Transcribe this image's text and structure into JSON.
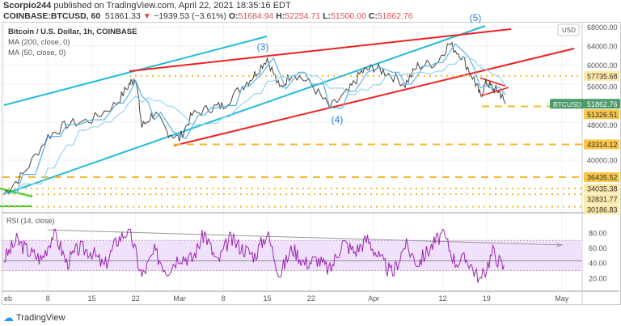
{
  "header": {
    "author": "Scorpio244",
    "published": "published on TradingView.com, April 22, 2021 18:35:16 EDT",
    "symbol": "COINBASE:BTCUSD, 60",
    "last": "51861.33",
    "change": "−1939.53 (−3.61%)",
    "o_label": "O:",
    "o": "51684.94",
    "h_label": "H:",
    "h": "52254.71",
    "l_label": "L:",
    "l": "51500.00",
    "c_label": "C:",
    "c": "51862.76"
  },
  "legend": {
    "title": "Bitcoin / U.S. Dollar, 1h, COINBASE",
    "ma200": "MA (200, close, 0)",
    "ma50": "MA (50, close, 0)",
    "rsi": "RSI (14, close)"
  },
  "footer": {
    "brand": "TradingView"
  },
  "colors": {
    "price": "#444444",
    "ma": "#5ab0e8",
    "channel_cyan": "#22bcd8",
    "trend_red": "#ee2222",
    "level": "#f5b82e",
    "rsi": "#9c27b0",
    "rsi_band": "#f0e2fc",
    "btc_tag": "#4a9a6a"
  },
  "chart_data": {
    "type": "line",
    "title": "Bitcoin / U.S. Dollar, 1h, COINBASE",
    "currency": "USD",
    "x_ticks": [
      "eb",
      "8",
      "15",
      "22",
      "Mar",
      "8",
      "15",
      "22",
      "Apr",
      "12",
      "19",
      "May"
    ],
    "x_tick_days": [
      0,
      7,
      14,
      21,
      28,
      35,
      42,
      49,
      59,
      70,
      77,
      89
    ],
    "y_ticks": [
      "68000.00",
      "64000.00",
      "60000.00",
      "56000.00",
      "48000.00",
      "40000.00"
    ],
    "y_tick_values": [
      68000,
      64000,
      60000,
      56000,
      48000,
      40000
    ],
    "ylim": [
      29000,
      69500
    ],
    "price_series": {
      "day": [
        0,
        3,
        7,
        10,
        14,
        18,
        20,
        21,
        22,
        24,
        26,
        28,
        30,
        33,
        35,
        38,
        40,
        42,
        44,
        46,
        49,
        52,
        55,
        57,
        59,
        61,
        64,
        66,
        69,
        71,
        73,
        75,
        76,
        77,
        78,
        79,
        80
      ],
      "close": [
        33000,
        37000,
        45000,
        47500,
        48500,
        52000,
        56000,
        57500,
        47000,
        50000,
        46000,
        44500,
        49500,
        51000,
        51500,
        55500,
        58000,
        61500,
        55000,
        58500,
        56000,
        51000,
        54500,
        58500,
        59500,
        58500,
        56000,
        59800,
        60500,
        64500,
        62000,
        57000,
        53500,
        56500,
        55000,
        54500,
        51862
      ]
    },
    "annotations": [
      "(3)",
      "(4)",
      "(5)"
    ],
    "levels": [
      {
        "label": "57735.68",
        "value": 57735.68,
        "style": "dotted"
      },
      {
        "label": "51326.51",
        "value": 51326.51,
        "style": "dashed"
      },
      {
        "label": "43314.12",
        "value": 43314.12,
        "style": "dashed"
      },
      {
        "label": "36435.52",
        "value": 36435.52,
        "style": "dashed"
      },
      {
        "label": "34035.38",
        "value": 34035.38,
        "style": "dotted"
      },
      {
        "label": "32831.77",
        "value": 32831.77,
        "style": "dotted"
      },
      {
        "label": "30186.83",
        "value": 30186.83,
        "style": "dotted"
      }
    ],
    "last_price": {
      "label": "BTCUSD",
      "value": "51862.76"
    },
    "rsi": {
      "title": "RSI (14, close)",
      "y_ticks": [
        "80.00",
        "60.00",
        "40.00",
        "20.00"
      ],
      "y_tick_values": [
        80,
        60,
        40,
        20
      ],
      "band": [
        30,
        70
      ],
      "ylim": [
        5,
        95
      ],
      "day": [
        0,
        2,
        4,
        6,
        8,
        10,
        12,
        14,
        16,
        18,
        20,
        22,
        24,
        26,
        28,
        30,
        32,
        34,
        36,
        38,
        40,
        42,
        44,
        46,
        48,
        50,
        52,
        54,
        56,
        58,
        60,
        62,
        64,
        66,
        68,
        70,
        72,
        74,
        76,
        78,
        80
      ],
      "values": [
        45,
        70,
        55,
        45,
        82,
        40,
        60,
        55,
        35,
        70,
        85,
        22,
        55,
        30,
        50,
        45,
        80,
        40,
        72,
        60,
        50,
        80,
        25,
        60,
        40,
        45,
        30,
        68,
        55,
        72,
        45,
        25,
        65,
        40,
        60,
        80,
        42,
        45,
        15,
        55,
        30
      ]
    }
  }
}
